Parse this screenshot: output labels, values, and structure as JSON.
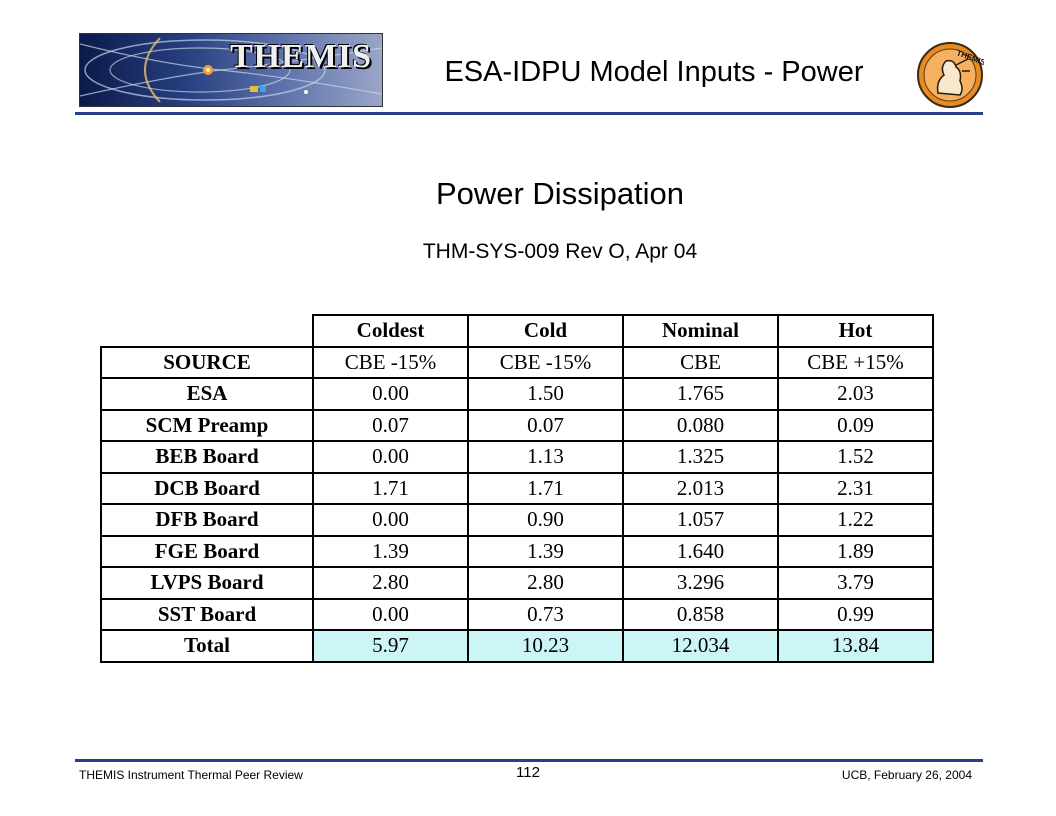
{
  "header": {
    "logo_text": "THEMIS",
    "title": "ESA-IDPU Model Inputs - Power",
    "badge_text": "THEMIS"
  },
  "main": {
    "subtitle": "Power Dissipation",
    "source_ref": "THM-SYS-009 Rev O, Apr 04"
  },
  "table": {
    "case_headers": [
      "Coldest",
      "Cold",
      "Nominal",
      "Hot"
    ],
    "source_label": "SOURCE",
    "estimates": [
      "CBE -15%",
      "CBE -15%",
      "CBE",
      "CBE +15%"
    ],
    "rows": [
      {
        "label": "ESA",
        "values": [
          "0.00",
          "1.50",
          "1.765",
          "2.03"
        ]
      },
      {
        "label": "SCM Preamp",
        "values": [
          "0.07",
          "0.07",
          "0.080",
          "0.09"
        ]
      },
      {
        "label": "BEB Board",
        "values": [
          "0.00",
          "1.13",
          "1.325",
          "1.52"
        ]
      },
      {
        "label": "DCB Board",
        "values": [
          "1.71",
          "1.71",
          "2.013",
          "2.31"
        ]
      },
      {
        "label": "DFB Board",
        "values": [
          "0.00",
          "0.90",
          "1.057",
          "1.22"
        ]
      },
      {
        "label": "FGE Board",
        "values": [
          "1.39",
          "1.39",
          "1.640",
          "1.89"
        ]
      },
      {
        "label": "LVPS Board",
        "values": [
          "2.80",
          "2.80",
          "3.296",
          "3.79"
        ]
      },
      {
        "label": "SST Board",
        "values": [
          "0.00",
          "0.73",
          "0.858",
          "0.99"
        ]
      }
    ],
    "total": {
      "label": "Total",
      "values": [
        "5.97",
        "10.23",
        "12.034",
        "13.84"
      ]
    },
    "total_highlight_color": "#ccf5f8"
  },
  "footer": {
    "left": "THEMIS Instrument Thermal Peer Review",
    "page_number": "112",
    "right": "UCB, February 26, 2004"
  },
  "colors": {
    "rule": "#27408b",
    "badge": "#e98a24"
  }
}
